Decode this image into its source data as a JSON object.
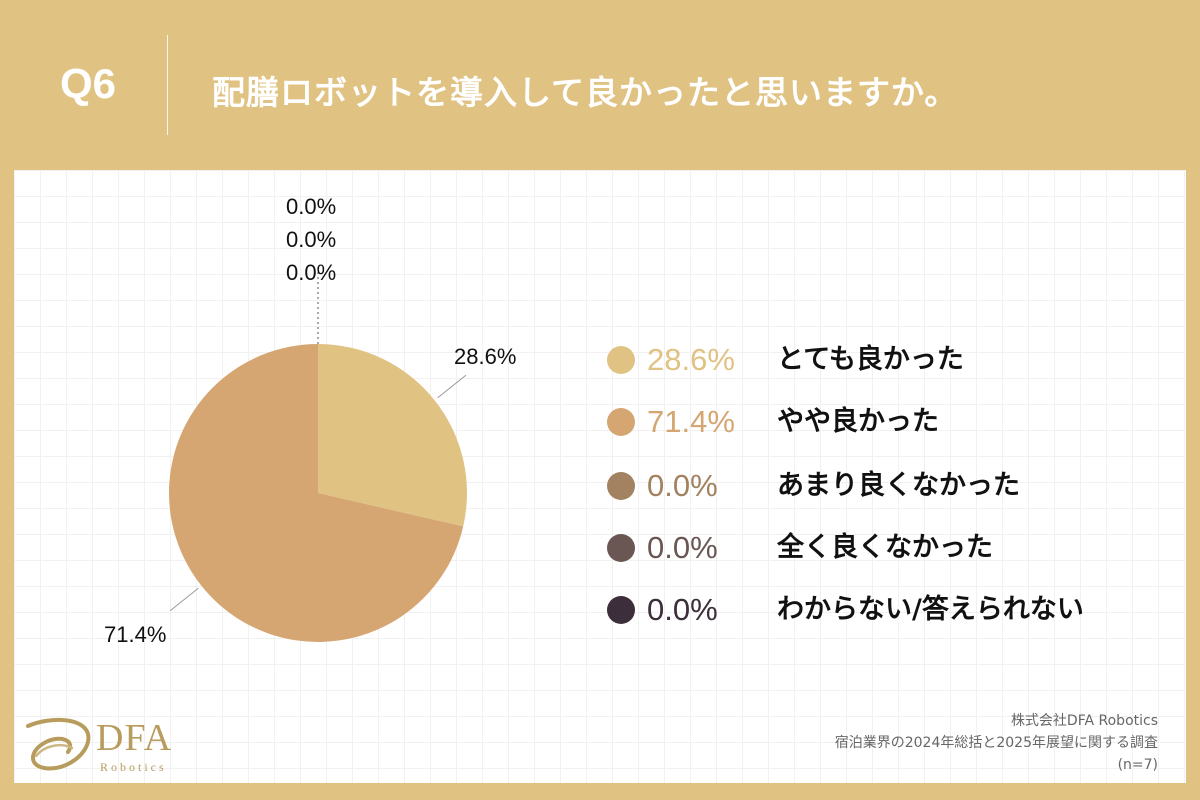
{
  "header": {
    "question_number": "Q6",
    "question_text": "配膳ロボットを導入して良かったと思いますか。"
  },
  "chart_data": {
    "type": "pie",
    "title": "配膳ロボットを導入して良かったと思いますか。",
    "slices": [
      {
        "label": "とても良かった",
        "value": 28.6,
        "value_text": "28.6%",
        "color": "#e0c283"
      },
      {
        "label": "やや良かった",
        "value": 71.4,
        "value_text": "71.4%",
        "color": "#d5a672"
      },
      {
        "label": "あまり良くなかった",
        "value": 0.0,
        "value_text": "0.0%",
        "color": "#a28260"
      },
      {
        "label": "全く良くなかった",
        "value": 0.0,
        "value_text": "0.0%",
        "color": "#6a5753"
      },
      {
        "label": "わからない/答えられない",
        "value": 0.0,
        "value_text": "0.0%",
        "color": "#3c2e3a"
      }
    ],
    "legend_position": "right"
  },
  "footer": {
    "company": "株式会社DFA Robotics",
    "survey": "宿泊業界の2024年総括と2025年展望に関する調査",
    "sample": "(n=7)"
  },
  "logo": {
    "name": "DFA",
    "sub": "Robotics",
    "color": "#b79c5e"
  }
}
